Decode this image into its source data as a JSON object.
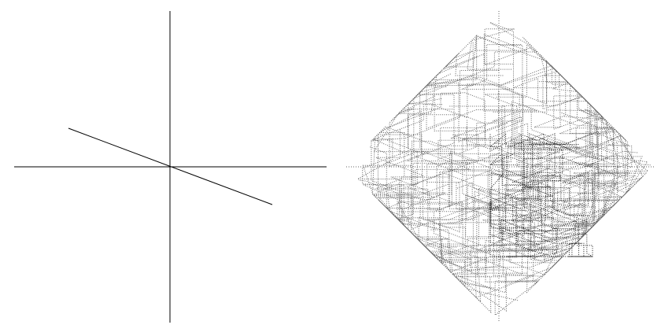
{
  "colors": {
    "background": "#ffffff",
    "axis": "#000000",
    "line": "#000000",
    "pattern_light": "#666666",
    "pattern_dark": "#222222"
  },
  "left_panel": {
    "axes": "cross",
    "line_slope": -0.38
  },
  "right_panel": {
    "pattern": "dotted-rotating-square-spiral"
  }
}
